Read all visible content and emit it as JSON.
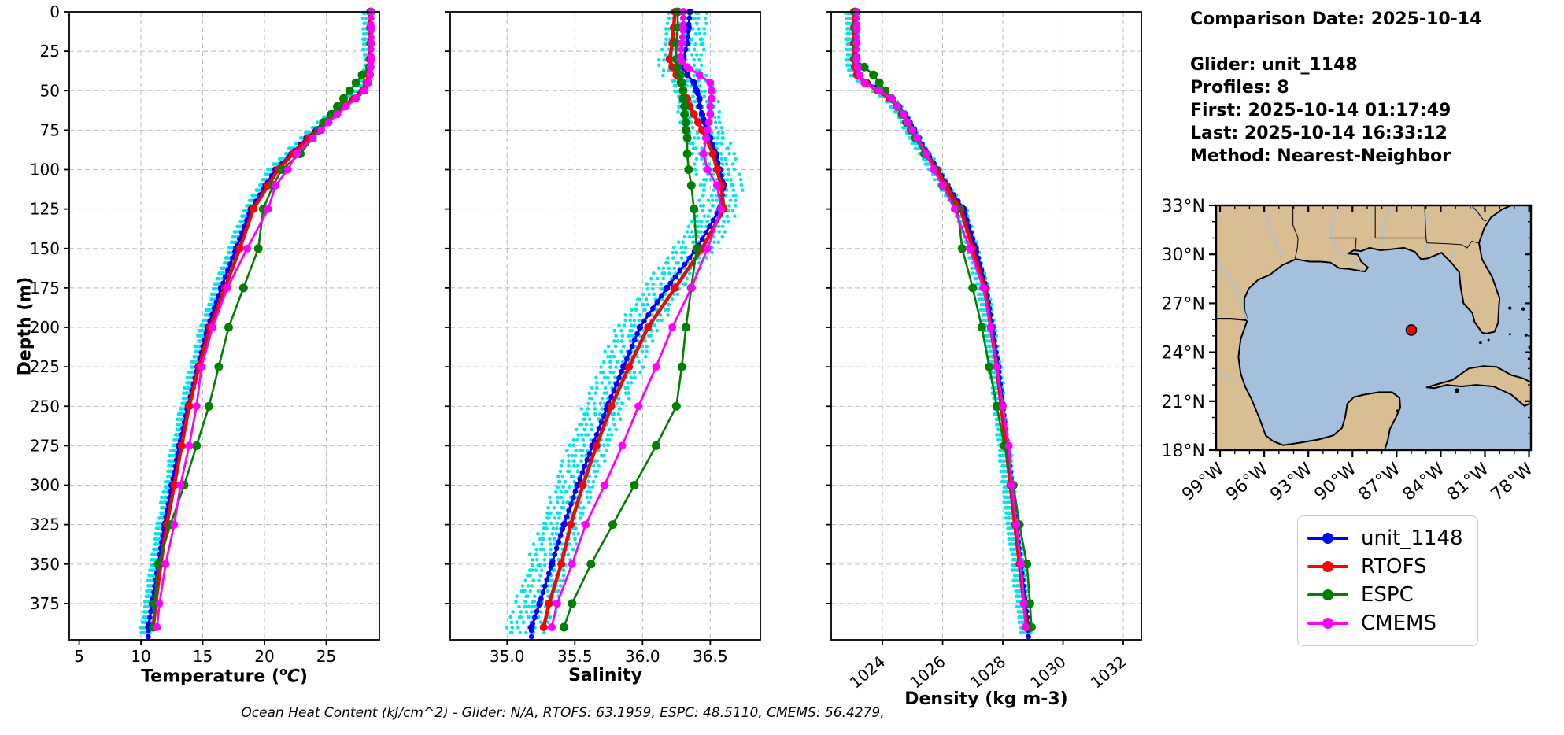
{
  "header": {
    "date_line": "Comparison Date: 2025-10-14",
    "lines": [
      "Glider: unit_1148",
      "Profiles: 8",
      "First: 2025-10-14 01:17:49",
      "Last: 2025-10-14 16:33:12",
      "Method: Nearest-Neighbor"
    ]
  },
  "footer": {
    "text": "Ocean Heat Content (kJ/cm^2) - Glider: N/A,  RTOFS: 63.1959,  ESPC: 48.5110,  CMEMS: 56.4279,"
  },
  "legend": {
    "items": [
      {
        "label": "unit_1148",
        "color": "#0000ff"
      },
      {
        "label": "RTOFS",
        "color": "#ff0000"
      },
      {
        "label": "ESPC",
        "color": "#008000"
      },
      {
        "label": "CMEMS",
        "color": "#ff00ff"
      }
    ]
  },
  "colors": {
    "glider_line": "#0000ff",
    "glider_scatter": "#00e5ee",
    "rtofs": "#ff0000",
    "espc": "#008000",
    "cmems": "#ff00ff",
    "grid": "#bbbbbb",
    "spine": "#000000"
  },
  "chart_data": [
    {
      "type": "line",
      "xlabel": "Temperature (oC)",
      "xlabel_pre": "Temperature (",
      "xlabel_sup": "o",
      "xlabel_ital": "C",
      "xlabel_post": ")",
      "ylabel": "Depth (m)",
      "xlim": [
        4.2,
        29.3
      ],
      "ylim": [
        0,
        398
      ],
      "xticks": [
        5,
        10,
        15,
        20,
        25
      ],
      "xtick_labels": [
        "5",
        "10",
        "15",
        "20",
        "25"
      ],
      "yticks": [
        0,
        25,
        50,
        75,
        100,
        125,
        150,
        175,
        200,
        225,
        250,
        275,
        300,
        325,
        350,
        375
      ],
      "grid": true,
      "rotate_xticks": false,
      "depths": [
        0,
        10,
        20,
        30,
        35,
        40,
        45,
        50,
        55,
        60,
        65,
        70,
        75,
        80,
        90,
        100,
        110,
        125,
        150,
        175,
        200,
        225,
        250,
        275,
        300,
        325,
        350,
        375,
        390
      ],
      "series": [
        {
          "name": "unit_1148",
          "color": "#0000ff",
          "values": [
            28.6,
            28.6,
            28.6,
            28.6,
            28.6,
            28.55,
            28.3,
            28.0,
            27.2,
            26.3,
            25.6,
            24.9,
            24.2,
            23.4,
            22.2,
            20.9,
            20.1,
            18.9,
            17.7,
            16.5,
            15.4,
            14.6,
            13.8,
            13.1,
            12.5,
            11.9,
            11.4,
            10.9,
            10.6
          ]
        },
        {
          "name": "RTOFS",
          "color": "#ff0000",
          "values": [
            28.55,
            28.55,
            28.55,
            28.5,
            28.5,
            28.45,
            28.25,
            27.95,
            27.25,
            26.45,
            25.75,
            25.05,
            24.35,
            23.55,
            22.3,
            21.1,
            20.3,
            19.1,
            18.0,
            16.8,
            15.6,
            14.7,
            13.9,
            13.3,
            12.7,
            12.1,
            11.6,
            11.2,
            11.0
          ]
        },
        {
          "name": "ESPC",
          "color": "#008000",
          "values": [
            28.6,
            28.6,
            28.6,
            28.6,
            28.5,
            27.9,
            27.4,
            26.9,
            26.4,
            25.9,
            25.4,
            24.8,
            24.4,
            23.9,
            22.9,
            21.4,
            20.7,
            19.9,
            19.5,
            18.3,
            17.1,
            16.3,
            15.5,
            14.5,
            13.5,
            12.4,
            11.4,
            11.1,
            11.0
          ]
        },
        {
          "name": "CMEMS",
          "color": "#ff00ff",
          "values": [
            28.65,
            28.65,
            28.65,
            28.65,
            28.6,
            28.55,
            28.4,
            28.1,
            27.4,
            26.6,
            25.9,
            25.2,
            24.6,
            23.9,
            22.6,
            21.9,
            20.9,
            20.3,
            18.6,
            17.0,
            15.8,
            14.9,
            14.5,
            13.9,
            13.2,
            12.7,
            12.0,
            11.5,
            11.3
          ]
        }
      ],
      "scatter": {
        "name": "glider-raw-points",
        "color": "#00e5ee",
        "profiles": 8,
        "offset_start": -0.55,
        "offset_step": 0.1,
        "jitter": 0.1
      }
    },
    {
      "type": "line",
      "xlabel": "Salinity",
      "ylabel": "Depth (m)",
      "xlim": [
        34.58,
        36.87
      ],
      "ylim": [
        0,
        398
      ],
      "xticks": [
        35.0,
        35.5,
        36.0,
        36.5
      ],
      "xtick_labels": [
        "35.0",
        "35.5",
        "36.0",
        "36.5"
      ],
      "yticks": [
        0,
        25,
        50,
        75,
        100,
        125,
        150,
        175,
        200,
        225,
        250,
        275,
        300,
        325,
        350,
        375
      ],
      "grid": true,
      "rotate_xticks": false,
      "depths": [
        0,
        10,
        20,
        30,
        35,
        40,
        45,
        50,
        55,
        60,
        65,
        70,
        75,
        80,
        90,
        100,
        110,
        125,
        150,
        175,
        200,
        225,
        250,
        275,
        300,
        325,
        350,
        375,
        390
      ],
      "series": [
        {
          "name": "unit_1148",
          "color": "#0000ff",
          "values": [
            36.35,
            36.34,
            36.33,
            36.3,
            36.3,
            36.33,
            36.38,
            36.4,
            36.42,
            36.42,
            36.44,
            36.46,
            36.48,
            36.5,
            36.54,
            36.57,
            36.6,
            36.57,
            36.4,
            36.18,
            35.98,
            35.86,
            35.74,
            35.63,
            35.52,
            35.42,
            35.33,
            35.24,
            35.18
          ]
        },
        {
          "name": "RTOFS",
          "color": "#ff0000",
          "values": [
            36.24,
            36.23,
            36.22,
            36.2,
            36.22,
            36.25,
            36.28,
            36.3,
            36.33,
            36.35,
            36.38,
            36.41,
            36.44,
            36.47,
            36.52,
            36.55,
            36.58,
            36.6,
            36.44,
            36.24,
            36.04,
            35.9,
            35.77,
            35.66,
            35.56,
            35.47,
            35.4,
            35.31,
            35.27
          ]
        },
        {
          "name": "ESPC",
          "color": "#008000",
          "values": [
            36.26,
            36.26,
            36.25,
            36.25,
            36.26,
            36.28,
            36.29,
            36.3,
            36.3,
            36.31,
            36.31,
            36.32,
            36.32,
            36.33,
            36.33,
            36.34,
            36.36,
            36.38,
            36.4,
            36.36,
            36.32,
            36.29,
            36.25,
            36.1,
            35.94,
            35.78,
            35.62,
            35.48,
            35.42
          ]
        },
        {
          "name": "CMEMS",
          "color": "#ff00ff",
          "values": [
            36.3,
            36.3,
            36.29,
            36.28,
            36.33,
            36.42,
            36.5,
            36.51,
            36.51,
            36.5,
            36.5,
            36.49,
            36.48,
            36.47,
            36.45,
            36.48,
            36.55,
            36.58,
            36.48,
            36.36,
            36.22,
            36.1,
            35.97,
            35.85,
            35.72,
            35.58,
            35.48,
            35.37,
            35.33
          ]
        }
      ],
      "scatter": {
        "name": "glider-raw-points",
        "color": "#00e5ee",
        "profiles": 8,
        "offset_start": -0.16,
        "offset_step": 0.04,
        "jitter": 0.025
      }
    },
    {
      "type": "line",
      "xlabel": "Density (kg m-3)",
      "ylabel": "Depth (m)",
      "xlim": [
        1022.3,
        1032.6
      ],
      "ylim": [
        0,
        398
      ],
      "xticks": [
        1024,
        1026,
        1028,
        1030,
        1032
      ],
      "xtick_labels": [
        "1024",
        "1026",
        "1028",
        "1030",
        "1032"
      ],
      "yticks": [
        0,
        25,
        50,
        75,
        100,
        125,
        150,
        175,
        200,
        225,
        250,
        275,
        300,
        325,
        350,
        375
      ],
      "grid": true,
      "rotate_xticks": true,
      "depths": [
        0,
        10,
        20,
        30,
        35,
        40,
        45,
        50,
        55,
        60,
        65,
        70,
        75,
        80,
        90,
        100,
        110,
        125,
        150,
        175,
        200,
        225,
        250,
        275,
        300,
        325,
        350,
        375,
        390
      ],
      "series": [
        {
          "name": "unit_1148",
          "color": "#0000ff",
          "values": [
            1023.1,
            1023.1,
            1023.1,
            1023.1,
            1023.12,
            1023.2,
            1023.5,
            1023.9,
            1024.3,
            1024.55,
            1024.75,
            1024.9,
            1025.05,
            1025.2,
            1025.5,
            1025.85,
            1026.15,
            1026.7,
            1027.1,
            1027.45,
            1027.65,
            1027.85,
            1028.0,
            1028.15,
            1028.3,
            1028.45,
            1028.6,
            1028.75,
            1028.85
          ]
        },
        {
          "name": "RTOFS",
          "color": "#ff0000",
          "values": [
            1023.05,
            1023.05,
            1023.05,
            1023.05,
            1023.08,
            1023.15,
            1023.45,
            1023.85,
            1024.25,
            1024.5,
            1024.7,
            1024.85,
            1025.0,
            1025.15,
            1025.45,
            1025.8,
            1026.1,
            1026.6,
            1027.0,
            1027.4,
            1027.6,
            1027.8,
            1027.95,
            1028.1,
            1028.25,
            1028.4,
            1028.55,
            1028.7,
            1028.8
          ]
        },
        {
          "name": "ESPC",
          "color": "#008000",
          "values": [
            1023.1,
            1023.1,
            1023.1,
            1023.1,
            1023.4,
            1023.7,
            1023.9,
            1024.1,
            1024.3,
            1024.5,
            1024.65,
            1024.8,
            1024.95,
            1025.1,
            1025.4,
            1025.75,
            1026.0,
            1026.5,
            1026.65,
            1027.0,
            1027.3,
            1027.55,
            1027.8,
            1028.05,
            1028.35,
            1028.55,
            1028.8,
            1028.9,
            1028.95
          ]
        },
        {
          "name": "CMEMS",
          "color": "#ff00ff",
          "values": [
            1023.15,
            1023.15,
            1023.15,
            1023.15,
            1023.18,
            1023.25,
            1023.4,
            1023.9,
            1024.3,
            1024.5,
            1024.7,
            1024.85,
            1025.0,
            1025.15,
            1025.45,
            1025.7,
            1026.0,
            1026.4,
            1026.9,
            1027.35,
            1027.6,
            1027.8,
            1028.0,
            1028.2,
            1028.3,
            1028.45,
            1028.6,
            1028.7,
            1028.75
          ]
        }
      ],
      "scatter": {
        "name": "glider-raw-points",
        "color": "#00e5ee",
        "profiles": 8,
        "offset_start": -0.28,
        "offset_step": 0.05,
        "jitter": 0.04
      }
    }
  ],
  "map": {
    "lon_range": [
      -99.27,
      -77.87
    ],
    "lat_range": [
      18,
      33
    ],
    "lat_ticks": [
      18,
      21,
      24,
      27,
      30,
      33
    ],
    "lat_labels": [
      "18°N",
      "21°N",
      "24°N",
      "27°N",
      "30°N",
      "33°N"
    ],
    "lon_ticks": [
      -99,
      -96,
      -93,
      -90,
      -87,
      -84,
      -81,
      -78
    ],
    "lon_labels": [
      "99°W",
      "96°W",
      "93°W",
      "90°W",
      "87°W",
      "84°W",
      "81°W",
      "78°W"
    ],
    "ocean_color": "#a4c0dc",
    "land_color": "#d9bd93",
    "coast_color": "#000000",
    "border_color": "#1a1a1a",
    "river_color": "#a3c2e8",
    "marker": {
      "lon": -86.0,
      "lat": 25.36,
      "color": "#ff0000"
    },
    "land": [
      [
        -99.3,
        33,
        -99.3,
        26.05,
        -98.3,
        26.05,
        -97.6,
        26.0,
        -97.15,
        25.95,
        -97.35,
        26.6,
        -97.35,
        27.3,
        -97.05,
        27.9,
        -96.4,
        28.45,
        -95.6,
        28.75,
        -94.75,
        29.35,
        -93.85,
        29.7,
        -92.9,
        29.55,
        -92.2,
        29.55,
        -91.5,
        29.5,
        -90.9,
        29.15,
        -90.2,
        29.1,
        -89.6,
        29.0,
        -89.15,
        28.95,
        -88.95,
        29.2,
        -89.4,
        29.55,
        -89.65,
        30.0,
        -90.3,
        30.05,
        -89.9,
        30.25,
        -89.4,
        30.2,
        -88.85,
        30.4,
        -88.1,
        30.25,
        -87.5,
        30.3,
        -86.5,
        30.4,
        -85.75,
        30.15,
        -85.35,
        29.7,
        -84.9,
        29.75,
        -84.35,
        29.95,
        -83.95,
        30.1,
        -83.2,
        29.4,
        -82.75,
        28.9,
        -82.65,
        28.0,
        -82.45,
        27.0,
        -81.85,
        26.4,
        -81.7,
        25.85,
        -81.2,
        25.2,
        -80.9,
        25.15,
        -80.35,
        25.25,
        -80.1,
        25.8,
        -80.05,
        26.8,
        -80.0,
        27.3,
        -80.5,
        28.6,
        -81.2,
        29.7,
        -81.4,
        30.7,
        -81.05,
        31.6,
        -80.6,
        32.25,
        -79.85,
        32.75,
        -79.2,
        33
      ],
      [
        -99.3,
        26.05,
        -99.3,
        18,
        -87.82,
        18,
        -87.6,
        18.6,
        -87.45,
        19.3,
        -87.05,
        20.0,
        -86.75,
        20.6,
        -86.8,
        21.2,
        -87.3,
        21.55,
        -88.2,
        21.55,
        -89.2,
        21.4,
        -89.9,
        21.25,
        -90.35,
        20.85,
        -90.5,
        20.0,
        -90.72,
        19.35,
        -91.3,
        18.9,
        -92.3,
        18.65,
        -93.6,
        18.45,
        -94.7,
        18.3,
        -95.4,
        18.55,
        -95.9,
        18.9,
        -96.3,
        19.9,
        -96.85,
        21.1,
        -97.3,
        21.9,
        -97.6,
        22.7,
        -97.75,
        23.7,
        -97.6,
        24.8,
        -97.15,
        25.95,
        -97.6,
        26.0,
        -98.3,
        26.05
      ],
      [
        -84.95,
        21.85,
        -84.0,
        22.1,
        -83.2,
        22.3,
        -82.1,
        23.0,
        -81.1,
        23.15,
        -80.2,
        23.1,
        -79.2,
        22.6,
        -78.4,
        22.4,
        -77.87,
        22.15,
        -77.87,
        20.9,
        -78.3,
        20.7,
        -79.2,
        21.4,
        -80.4,
        21.9,
        -81.6,
        22.0,
        -82.6,
        21.9,
        -83.6,
        22.0,
        -84.4,
        21.8
      ]
    ],
    "islands": [
      [
        -82.9,
        21.65,
        3
      ],
      [
        -86.93,
        20.4,
        2
      ],
      [
        -79.3,
        26.7,
        2.2
      ],
      [
        -78.4,
        26.65,
        2.2
      ],
      [
        -78.2,
        25.05,
        2
      ],
      [
        -77.95,
        24.3,
        2
      ],
      [
        -81.3,
        24.6,
        2
      ],
      [
        -80.75,
        24.75,
        1.5
      ],
      [
        -79.3,
        25.1,
        1.5
      ],
      [
        -78.0,
        23.6,
        1.8
      ]
    ],
    "borders": [
      [
        -94.05,
        33,
        -94.05,
        31.8,
        -93.7,
        31.0,
        -93.75,
        30.4,
        -93.9,
        29.75
      ],
      [
        -88.45,
        33,
        -88.45,
        31.0
      ],
      [
        -88.45,
        31.0,
        -85.0,
        31.0
      ],
      [
        -85.1,
        33,
        -85.05,
        32.0,
        -85.0,
        31.0
      ],
      [
        -84.95,
        30.7,
        -83.6,
        30.65,
        -82.6,
        30.6,
        -82.2,
        30.4,
        -81.9,
        30.8,
        -81.45,
        30.7
      ],
      [
        -85.0,
        31.0,
        -84.95,
        30.7
      ],
      [
        -81.9,
        33,
        -81.5,
        32.6,
        -81.1,
        32.1,
        -80.9,
        32.05
      ],
      [
        -91.6,
        31.0,
        -89.75,
        31.0
      ],
      [
        -89.75,
        31.0,
        -89.8,
        30.2
      ]
    ],
    "rivers": [
      [
        -99.3,
        29.9,
        -98.6,
        28.9,
        -98.0,
        28.0,
        -97.5,
        26.9,
        -97.15,
        25.95
      ],
      [
        -90.95,
        33,
        -91.3,
        32.2,
        -91.5,
        31.4,
        -91.3,
        30.8,
        -91.0,
        30.2,
        -90.4,
        29.9,
        -89.9,
        29.5,
        -89.4,
        29.0
      ],
      [
        -87.4,
        33,
        -87.8,
        32.0,
        -88.0,
        31.0,
        -87.95,
        30.7
      ],
      [
        -84.9,
        32.6,
        -85.05,
        31.5,
        -84.95,
        30.5,
        -85.0,
        29.8
      ],
      [
        -82.2,
        33,
        -81.6,
        32.5,
        -80.95,
        32.05
      ],
      [
        -83.0,
        30.3,
        -83.3,
        29.7
      ],
      [
        -96.1,
        33,
        -95.6,
        31.5,
        -95.0,
        30.3,
        -94.8,
        29.8
      ],
      [
        -99.3,
        23.0,
        -98.4,
        22.4,
        -97.85,
        22.3
      ],
      [
        -93.2,
        18.0,
        -92.9,
        18.45
      ]
    ]
  }
}
